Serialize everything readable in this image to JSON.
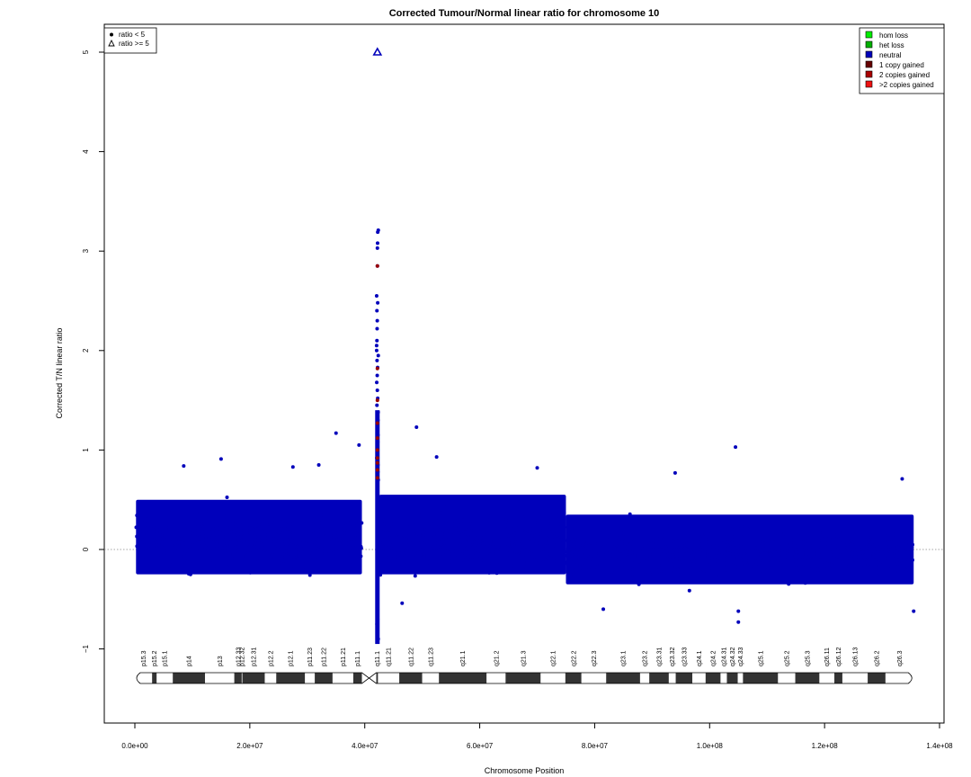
{
  "chart_data": {
    "type": "scatter",
    "title": "Corrected Tumour/Normal linear ratio for chromosome  10",
    "xlabel": "Chromosome Position",
    "ylabel": "Corrected T/N linear ratio",
    "xlim": [
      0,
      140000000
    ],
    "ylim": [
      -1.7,
      5.5
    ],
    "x_ticks": [
      0,
      20000000,
      40000000,
      60000000,
      80000000,
      100000000,
      120000000,
      140000000
    ],
    "x_tick_labels": [
      "0.0e+00",
      "2.0e+07",
      "4.0e+07",
      "6.0e+07",
      "8.0e+07",
      "1.0e+08",
      "1.2e+08",
      "1.4e+08"
    ],
    "y_ticks": [
      -1,
      0,
      1,
      2,
      3,
      4,
      5
    ],
    "y_tick_labels": [
      "−1",
      "0",
      "1",
      "2",
      "3",
      "4",
      "5"
    ],
    "reference_line_y": 0,
    "grid": false,
    "shape_legend": {
      "placement": "top-left",
      "entries": [
        {
          "label": "ratio < 5",
          "symbol": "dot"
        },
        {
          "label": "ratio >= 5",
          "symbol": "triangle"
        }
      ]
    },
    "color_legend": {
      "placement": "top-right",
      "entries": [
        {
          "label": "hom loss",
          "color": "#00ee00"
        },
        {
          "label": "het loss",
          "color": "#00b000"
        },
        {
          "label": "neutral",
          "color": "#0000bb"
        },
        {
          "label": "1 copy gained",
          "color": "#660000"
        },
        {
          "label": "2 copies gained",
          "color": "#aa0000"
        },
        {
          "label": ">2 copies gained",
          "color": "#ee1111"
        }
      ]
    },
    "point_color": "#0000bb",
    "gained_color": "#990000",
    "series": [
      {
        "x_range": [
          200000,
          39500000
        ],
        "mean": 0.09,
        "sd": 0.13,
        "dense_range": [
          -0.25,
          0.5
        ],
        "outliers": [
          {
            "x": 15000000,
            "y": 0.91
          },
          {
            "x": 35000000,
            "y": 1.17
          },
          {
            "x": 39000000,
            "y": 1.05
          },
          {
            "x": 8500000,
            "y": 0.84
          },
          {
            "x": 27500000,
            "y": 0.83
          },
          {
            "x": 32000000,
            "y": 0.85
          }
        ]
      },
      {
        "x_range": [
          42500000,
          75000000
        ],
        "mean": 0.08,
        "sd": 0.13,
        "dense_range": [
          -0.25,
          0.55
        ],
        "outliers": [
          {
            "x": 49000000,
            "y": 1.23
          },
          {
            "x": 52500000,
            "y": 0.93
          },
          {
            "x": 70000000,
            "y": 0.82
          },
          {
            "x": 46500000,
            "y": -0.54
          }
        ]
      },
      {
        "x_range": [
          75000000,
          135500000
        ],
        "mean": -0.04,
        "sd": 0.11,
        "dense_range": [
          -0.35,
          0.35
        ],
        "outliers": [
          {
            "x": 104500000,
            "y": 1.03
          },
          {
            "x": 105000000,
            "y": -0.62
          },
          {
            "x": 105000000,
            "y": -0.73
          },
          {
            "x": 94000000,
            "y": 0.77
          },
          {
            "x": 133500000,
            "y": 0.71
          },
          {
            "x": 81500000,
            "y": -0.6
          },
          {
            "x": 135500000,
            "y": -0.62
          }
        ]
      }
    ],
    "centromere_spike": {
      "x": 42200000,
      "y_points": [
        3.21,
        3.19,
        3.08,
        3.03,
        2.85,
        2.55,
        2.48,
        2.4,
        2.3,
        2.22,
        2.1,
        2.05,
        2.0,
        1.95,
        1.9,
        1.83,
        1.75,
        1.68,
        1.6,
        1.52,
        1.45,
        1.38,
        1.3,
        1.22,
        1.15,
        1.08,
        1.0,
        0.92,
        0.85,
        0.78,
        0.7,
        -0.5,
        -0.6,
        -0.7,
        -0.75,
        -0.8,
        -0.85,
        -0.9
      ],
      "gained_points": [
        2.85,
        1.82,
        1.5,
        1.27,
        1.12,
        1.0,
        0.92,
        0.87,
        0.8,
        0.72
      ],
      "triangle": {
        "x": 42200000,
        "y": 5.0
      }
    },
    "ideogram": {
      "centromere": [
        39500000,
        42000000
      ],
      "bands": [
        {
          "name": "p15.3",
          "start": 0,
          "end": 3000000,
          "stain": "white"
        },
        {
          "name": "p15.2",
          "start": 3000000,
          "end": 3800000,
          "stain": "dark"
        },
        {
          "name": "p15.1",
          "start": 3800000,
          "end": 6600000,
          "stain": "white"
        },
        {
          "name": "p14",
          "start": 6600000,
          "end": 12200000,
          "stain": "dark"
        },
        {
          "name": "p13",
          "start": 12200000,
          "end": 17300000,
          "stain": "white"
        },
        {
          "name": "p12.33",
          "start": 17300000,
          "end": 18600000,
          "stain": "dark"
        },
        {
          "name": "p12.32",
          "start": 18600000,
          "end": 18700000,
          "stain": "white"
        },
        {
          "name": "p12.31",
          "start": 18700000,
          "end": 22600000,
          "stain": "dark"
        },
        {
          "name": "p12.2",
          "start": 22600000,
          "end": 24600000,
          "stain": "white"
        },
        {
          "name": "p12.1",
          "start": 24600000,
          "end": 29600000,
          "stain": "dark"
        },
        {
          "name": "p11.23",
          "start": 29600000,
          "end": 31300000,
          "stain": "white"
        },
        {
          "name": "p11.22",
          "start": 31300000,
          "end": 34400000,
          "stain": "dark"
        },
        {
          "name": "p11.21",
          "start": 34400000,
          "end": 38000000,
          "stain": "white"
        },
        {
          "name": "p11.1",
          "start": 38000000,
          "end": 39500000,
          "stain": "dark"
        },
        {
          "name": "q11.1",
          "start": 42000000,
          "end": 42300000,
          "stain": "dark"
        },
        {
          "name": "q11.21",
          "start": 42300000,
          "end": 46000000,
          "stain": "white"
        },
        {
          "name": "q11.22",
          "start": 46000000,
          "end": 50000000,
          "stain": "dark"
        },
        {
          "name": "q11.23",
          "start": 50000000,
          "end": 52900000,
          "stain": "white"
        },
        {
          "name": "q21.1",
          "start": 52900000,
          "end": 61200000,
          "stain": "dark"
        },
        {
          "name": "q21.2",
          "start": 61200000,
          "end": 64500000,
          "stain": "white"
        },
        {
          "name": "q21.3",
          "start": 64500000,
          "end": 70600000,
          "stain": "dark"
        },
        {
          "name": "q22.1",
          "start": 70600000,
          "end": 74900000,
          "stain": "white"
        },
        {
          "name": "q22.2",
          "start": 74900000,
          "end": 77700000,
          "stain": "dark"
        },
        {
          "name": "q22.3",
          "start": 77700000,
          "end": 82000000,
          "stain": "white"
        },
        {
          "name": "q23.1",
          "start": 82000000,
          "end": 87900000,
          "stain": "dark"
        },
        {
          "name": "q23.2",
          "start": 87900000,
          "end": 89500000,
          "stain": "white"
        },
        {
          "name": "q23.31",
          "start": 89500000,
          "end": 92900000,
          "stain": "dark"
        },
        {
          "name": "q23.32",
          "start": 92900000,
          "end": 94100000,
          "stain": "white"
        },
        {
          "name": "q23.33",
          "start": 94100000,
          "end": 97000000,
          "stain": "dark"
        },
        {
          "name": "q24.1",
          "start": 97000000,
          "end": 99300000,
          "stain": "white"
        },
        {
          "name": "q24.2",
          "start": 99300000,
          "end": 101900000,
          "stain": "dark"
        },
        {
          "name": "q24.31",
          "start": 101900000,
          "end": 103000000,
          "stain": "white"
        },
        {
          "name": "q24.32",
          "start": 103000000,
          "end": 104900000,
          "stain": "dark"
        },
        {
          "name": "q24.33",
          "start": 104900000,
          "end": 105800000,
          "stain": "white"
        },
        {
          "name": "q25.1",
          "start": 105800000,
          "end": 111900000,
          "stain": "dark"
        },
        {
          "name": "q25.2",
          "start": 111900000,
          "end": 114900000,
          "stain": "white"
        },
        {
          "name": "q25.3",
          "start": 114900000,
          "end": 119100000,
          "stain": "dark"
        },
        {
          "name": "q26.11",
          "start": 119100000,
          "end": 121700000,
          "stain": "white"
        },
        {
          "name": "q26.12",
          "start": 121700000,
          "end": 123100000,
          "stain": "dark"
        },
        {
          "name": "q26.13",
          "start": 123100000,
          "end": 127500000,
          "stain": "white"
        },
        {
          "name": "q26.2",
          "start": 127500000,
          "end": 130600000,
          "stain": "dark"
        },
        {
          "name": "q26.3",
          "start": 130600000,
          "end": 135500000,
          "stain": "white"
        }
      ]
    }
  }
}
